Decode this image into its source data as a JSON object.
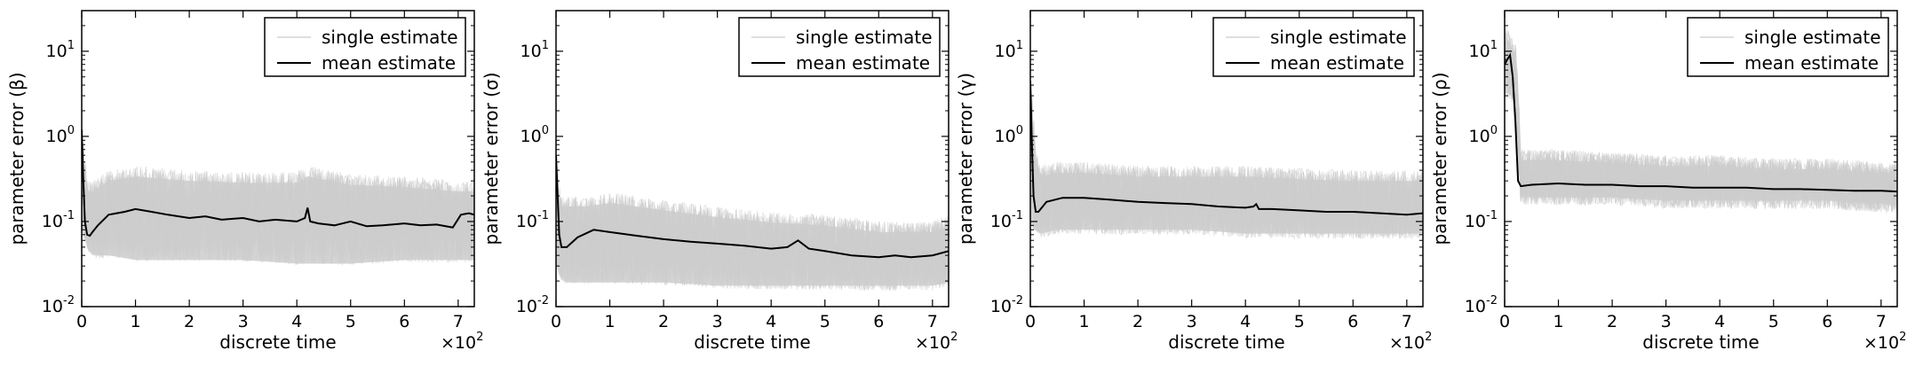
{
  "chart_data": [
    {
      "type": "line",
      "ylabel": "parameter error (β)",
      "xlabel": "discrete time",
      "x_multiplier_label": "×10",
      "x_multiplier_exp": "2",
      "xlim": [
        0,
        7.3
      ],
      "ylim": [
        0.01,
        30
      ],
      "yscale": "log",
      "xticks": [
        "0",
        "1",
        "2",
        "3",
        "4",
        "5",
        "6",
        "7"
      ],
      "yticks": [
        {
          "base": "10",
          "exp": "-2",
          "v": 0.01
        },
        {
          "base": "10",
          "exp": "-1",
          "v": 0.1
        },
        {
          "base": "10",
          "exp": "0",
          "v": 1
        },
        {
          "base": "10",
          "exp": "1",
          "v": 10
        }
      ],
      "legend": {
        "position": "top-right",
        "entries": [
          {
            "label": "single estimate",
            "color": "#cccccc"
          },
          {
            "label": "mean estimate",
            "color": "#000000"
          }
        ]
      },
      "series": [
        {
          "name": "single estimate",
          "role": "band",
          "color": "#cccccc",
          "x": [
            0,
            0.05,
            0.1,
            0.2,
            0.5,
            1,
            2,
            3,
            4,
            4.2,
            5,
            6,
            7,
            7.3
          ],
          "upper": [
            1.5,
            0.6,
            0.3,
            0.3,
            0.4,
            0.45,
            0.4,
            0.38,
            0.38,
            0.45,
            0.36,
            0.34,
            0.3,
            0.3
          ],
          "lower": [
            0.05,
            0.04,
            0.03,
            0.025,
            0.025,
            0.022,
            0.022,
            0.022,
            0.02,
            0.02,
            0.02,
            0.022,
            0.022,
            0.022
          ]
        },
        {
          "name": "mean estimate",
          "role": "line",
          "color": "#000000",
          "x": [
            0,
            0.03,
            0.06,
            0.1,
            0.15,
            0.2,
            0.3,
            0.5,
            0.8,
            1,
            1.3,
            1.6,
            2,
            2.3,
            2.6,
            3,
            3.3,
            3.6,
            4,
            4.15,
            4.2,
            4.25,
            4.4,
            4.7,
            5,
            5.3,
            5.6,
            6,
            6.3,
            6.6,
            6.9,
            7.05,
            7.2,
            7.3
          ],
          "y": [
            1.2,
            0.3,
            0.1,
            0.07,
            0.068,
            0.075,
            0.09,
            0.12,
            0.13,
            0.14,
            0.13,
            0.12,
            0.11,
            0.115,
            0.105,
            0.11,
            0.1,
            0.105,
            0.1,
            0.11,
            0.145,
            0.1,
            0.095,
            0.09,
            0.1,
            0.088,
            0.09,
            0.095,
            0.09,
            0.092,
            0.085,
            0.12,
            0.125,
            0.12
          ]
        }
      ]
    },
    {
      "type": "line",
      "ylabel": "parameter error (σ)",
      "xlabel": "discrete time",
      "x_multiplier_label": "×10",
      "x_multiplier_exp": "2",
      "xlim": [
        0,
        7.3
      ],
      "ylim": [
        0.01,
        30
      ],
      "yscale": "log",
      "xticks": [
        "0",
        "1",
        "2",
        "3",
        "4",
        "5",
        "6",
        "7"
      ],
      "yticks": [
        {
          "base": "10",
          "exp": "-2",
          "v": 0.01
        },
        {
          "base": "10",
          "exp": "-1",
          "v": 0.1
        },
        {
          "base": "10",
          "exp": "0",
          "v": 1
        },
        {
          "base": "10",
          "exp": "1",
          "v": 10
        }
      ],
      "legend": {
        "position": "top-right",
        "entries": [
          {
            "label": "single estimate",
            "color": "#cccccc"
          },
          {
            "label": "mean estimate",
            "color": "#000000"
          }
        ]
      },
      "series": [
        {
          "name": "single estimate",
          "role": "band",
          "color": "#cccccc",
          "x": [
            0,
            0.05,
            0.1,
            0.2,
            0.5,
            1,
            2,
            3,
            4,
            5,
            6,
            7,
            7.3
          ],
          "upper": [
            0.6,
            0.3,
            0.2,
            0.2,
            0.2,
            0.22,
            0.18,
            0.15,
            0.13,
            0.12,
            0.1,
            0.1,
            0.12
          ],
          "lower": [
            0.02,
            0.015,
            0.013,
            0.012,
            0.012,
            0.012,
            0.012,
            0.011,
            0.011,
            0.011,
            0.011,
            0.011,
            0.012
          ]
        },
        {
          "name": "mean estimate",
          "role": "line",
          "color": "#000000",
          "x": [
            0,
            0.03,
            0.06,
            0.1,
            0.2,
            0.4,
            0.7,
            1,
            1.5,
            2,
            2.5,
            3,
            3.5,
            4,
            4.3,
            4.5,
            4.7,
            5,
            5.5,
            6,
            6.3,
            6.6,
            7,
            7.3
          ],
          "y": [
            0.6,
            0.2,
            0.07,
            0.05,
            0.05,
            0.065,
            0.08,
            0.075,
            0.068,
            0.062,
            0.058,
            0.055,
            0.052,
            0.048,
            0.05,
            0.06,
            0.048,
            0.045,
            0.04,
            0.038,
            0.04,
            0.038,
            0.04,
            0.045
          ]
        }
      ]
    },
    {
      "type": "line",
      "ylabel": "parameter error (γ)",
      "xlabel": "discrete time",
      "x_multiplier_label": "×10",
      "x_multiplier_exp": "2",
      "xlim": [
        0,
        7.3
      ],
      "ylim": [
        0.01,
        30
      ],
      "yscale": "log",
      "xticks": [
        "0",
        "1",
        "2",
        "3",
        "4",
        "5",
        "6",
        "7"
      ],
      "yticks": [
        {
          "base": "10",
          "exp": "-2",
          "v": 0.01
        },
        {
          "base": "10",
          "exp": "-1",
          "v": 0.1
        },
        {
          "base": "10",
          "exp": "0",
          "v": 1
        },
        {
          "base": "10",
          "exp": "1",
          "v": 10
        }
      ],
      "legend": {
        "position": "top-right",
        "entries": [
          {
            "label": "single estimate",
            "color": "#cccccc"
          },
          {
            "label": "mean estimate",
            "color": "#000000"
          }
        ]
      },
      "series": [
        {
          "name": "single estimate",
          "role": "band",
          "color": "#cccccc",
          "x": [
            0,
            0.05,
            0.1,
            0.2,
            0.5,
            1,
            2,
            3,
            4,
            5,
            6,
            7,
            7.3
          ],
          "upper": [
            5,
            2,
            0.7,
            0.45,
            0.5,
            0.5,
            0.45,
            0.45,
            0.45,
            0.42,
            0.4,
            0.4,
            0.4
          ],
          "lower": [
            0.06,
            0.05,
            0.05,
            0.045,
            0.05,
            0.05,
            0.05,
            0.05,
            0.045,
            0.045,
            0.045,
            0.045,
            0.045
          ]
        },
        {
          "name": "mean estimate",
          "role": "line",
          "color": "#000000",
          "x": [
            0,
            0.03,
            0.06,
            0.1,
            0.15,
            0.3,
            0.6,
            1,
            1.5,
            2,
            2.5,
            3,
            3.5,
            4,
            4.15,
            4.2,
            4.25,
            4.5,
            5,
            5.5,
            6,
            6.5,
            7,
            7.3
          ],
          "y": [
            4.5,
            0.8,
            0.2,
            0.13,
            0.13,
            0.17,
            0.19,
            0.19,
            0.18,
            0.17,
            0.165,
            0.16,
            0.15,
            0.145,
            0.15,
            0.16,
            0.14,
            0.14,
            0.135,
            0.13,
            0.13,
            0.125,
            0.12,
            0.125
          ]
        }
      ]
    },
    {
      "type": "line",
      "ylabel": "parameter error (ρ)",
      "xlabel": "discrete time",
      "x_multiplier_label": "×10",
      "x_multiplier_exp": "2",
      "xlim": [
        0,
        7.3
      ],
      "ylim": [
        0.01,
        30
      ],
      "yscale": "log",
      "xticks": [
        "0",
        "1",
        "2",
        "3",
        "4",
        "5",
        "6",
        "7"
      ],
      "yticks": [
        {
          "base": "10",
          "exp": "-2",
          "v": 0.01
        },
        {
          "base": "10",
          "exp": "-1",
          "v": 0.1
        },
        {
          "base": "10",
          "exp": "0",
          "v": 1
        },
        {
          "base": "10",
          "exp": "1",
          "v": 10
        }
      ],
      "legend": {
        "position": "top-right",
        "entries": [
          {
            "label": "single estimate",
            "color": "#cccccc"
          },
          {
            "label": "mean estimate",
            "color": "#000000"
          }
        ]
      },
      "series": [
        {
          "name": "single estimate",
          "role": "band",
          "color": "#cccccc",
          "x": [
            0,
            0.05,
            0.1,
            0.2,
            0.25,
            0.3,
            0.5,
            1,
            2,
            3,
            4,
            5,
            6,
            7,
            7.3
          ],
          "upper": [
            18,
            18,
            16,
            12,
            3,
            0.7,
            0.7,
            0.7,
            0.65,
            0.6,
            0.6,
            0.55,
            0.55,
            0.5,
            0.5
          ],
          "lower": [
            2,
            2,
            2,
            1.5,
            0.3,
            0.12,
            0.12,
            0.12,
            0.12,
            0.11,
            0.11,
            0.11,
            0.11,
            0.1,
            0.1
          ]
        },
        {
          "name": "mean estimate",
          "role": "line",
          "color": "#000000",
          "x": [
            0,
            0.05,
            0.1,
            0.15,
            0.2,
            0.25,
            0.3,
            0.5,
            1,
            1.5,
            2,
            2.5,
            3,
            3.5,
            4,
            4.5,
            5,
            5.5,
            6,
            6.5,
            7,
            7.3
          ],
          "y": [
            7,
            8,
            9,
            5,
            1.5,
            0.3,
            0.26,
            0.27,
            0.28,
            0.27,
            0.27,
            0.26,
            0.26,
            0.25,
            0.25,
            0.25,
            0.24,
            0.24,
            0.235,
            0.23,
            0.23,
            0.225
          ]
        }
      ]
    }
  ]
}
